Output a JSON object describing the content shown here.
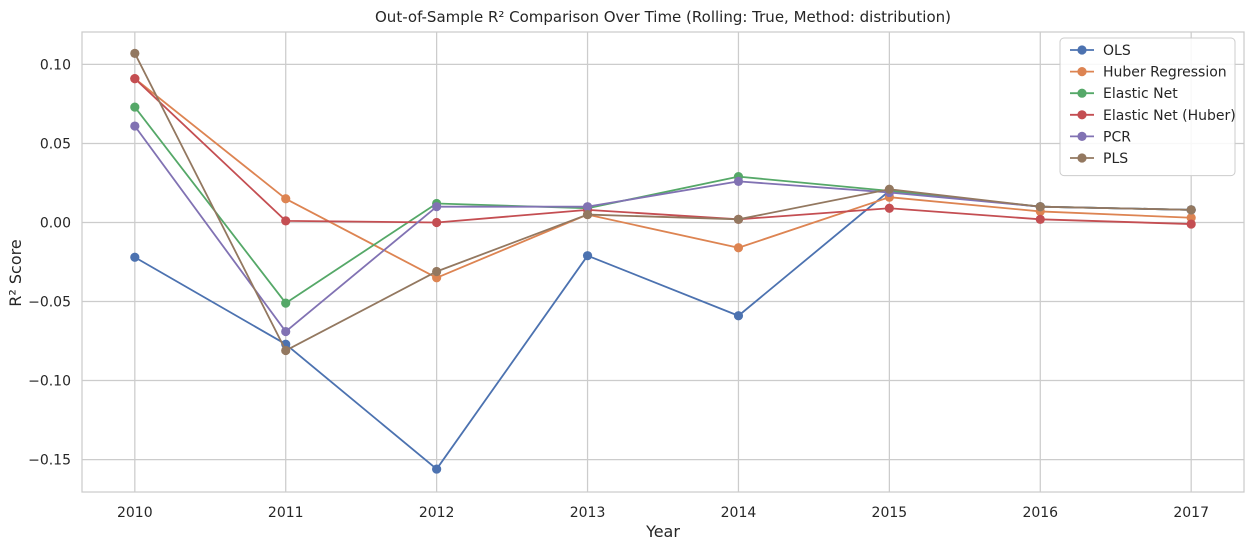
{
  "chart_data": {
    "type": "line",
    "title": "Out-of-Sample R² Comparison Over Time (Rolling: True, Method: distribution)",
    "xlabel": "Year",
    "ylabel": "R² Score",
    "x": [
      2010,
      2011,
      2012,
      2013,
      2014,
      2015,
      2016,
      2017
    ],
    "x_tick_labels": [
      "2010",
      "2011",
      "2012",
      "2013",
      "2014",
      "2015",
      "2016",
      "2017"
    ],
    "xlim": [
      2009.65,
      2017.35
    ],
    "ylim": [
      -0.1705,
      0.1205
    ],
    "y_ticks": [
      0.1,
      0.05,
      0.0,
      -0.05,
      -0.1,
      -0.15
    ],
    "y_tick_labels": [
      "0.10",
      "0.05",
      "0.00",
      "−0.05",
      "−0.10",
      "−0.15"
    ],
    "grid": true,
    "legend_position": "top-right",
    "series": [
      {
        "name": "OLS",
        "color": "#4c72b0",
        "values": [
          -0.022,
          -0.077,
          -0.156,
          -0.021,
          -0.059,
          0.02,
          0.01,
          0.008
        ]
      },
      {
        "name": "Huber Regression",
        "color": "#dd8452",
        "values": [
          0.091,
          0.015,
          -0.035,
          0.005,
          -0.016,
          0.016,
          0.007,
          0.003
        ]
      },
      {
        "name": "Elastic Net",
        "color": "#55a868",
        "values": [
          0.073,
          -0.051,
          0.012,
          0.009,
          0.029,
          0.02,
          0.01,
          0.008
        ]
      },
      {
        "name": "Elastic Net (Huber)",
        "color": "#c44e52",
        "values": [
          0.091,
          0.001,
          0.0,
          0.008,
          0.002,
          0.009,
          0.002,
          -0.001
        ]
      },
      {
        "name": "PCR",
        "color": "#8172b3",
        "values": [
          0.061,
          -0.069,
          0.01,
          0.01,
          0.026,
          0.019,
          0.01,
          0.008
        ]
      },
      {
        "name": "PLS",
        "color": "#937860",
        "values": [
          0.107,
          -0.081,
          -0.031,
          0.005,
          0.002,
          0.021,
          0.01,
          0.008
        ]
      }
    ]
  }
}
